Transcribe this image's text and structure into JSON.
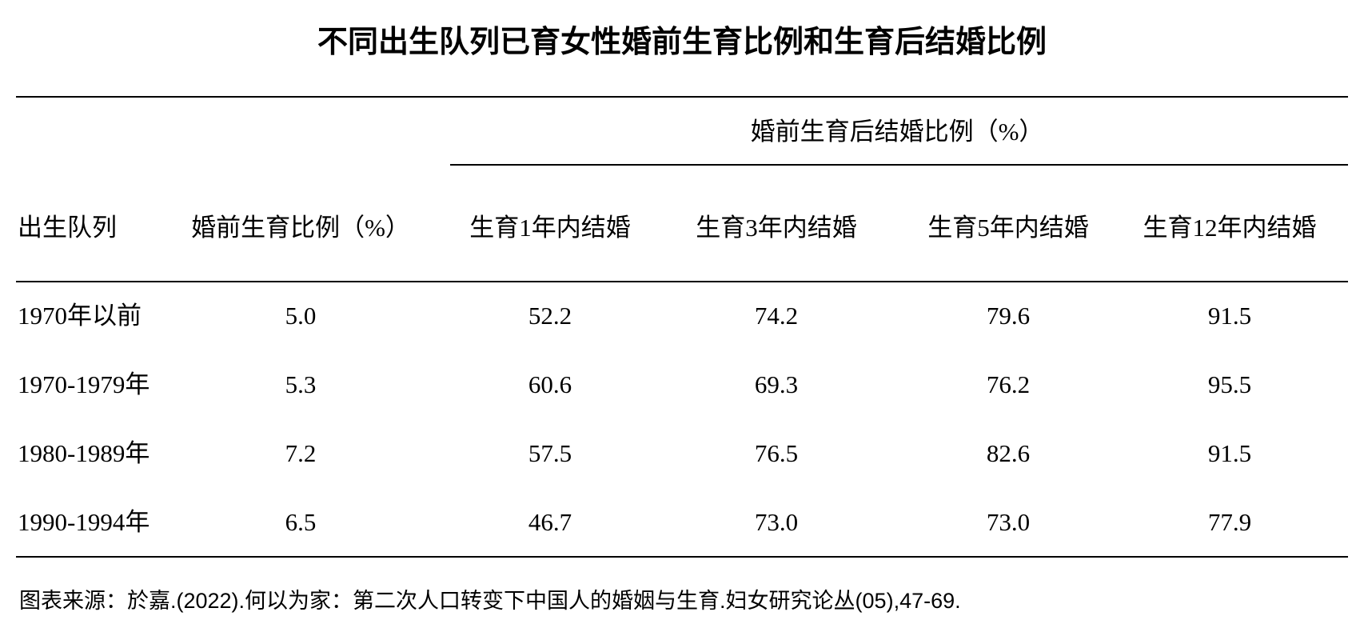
{
  "title": "不同出生队列已育女性婚前生育比例和生育后结婚比例",
  "table": {
    "group_header": "婚前生育后结婚比例（%）",
    "header": [
      "出生队列",
      "婚前生育比例（%）",
      "生育1年内结婚",
      "生育3年内结婚",
      "生育5年内结婚",
      "生育12年内结婚"
    ],
    "rows": [
      [
        "1970年以前",
        "5.0",
        "52.2",
        "74.2",
        "79.6",
        "91.5"
      ],
      [
        "1970-1979年",
        "5.3",
        "60.6",
        "69.3",
        "76.2",
        "95.5"
      ],
      [
        "1980-1989年",
        "7.2",
        "57.5",
        "76.5",
        "82.6",
        "91.5"
      ],
      [
        "1990-1994年",
        "6.5",
        "46.7",
        "73.0",
        "73.0",
        "77.9"
      ]
    ]
  },
  "source": "图表来源：於嘉.(2022).何以为家：第二次人口转变下中国人的婚姻与生育.妇女研究论丛(05),47-69."
}
